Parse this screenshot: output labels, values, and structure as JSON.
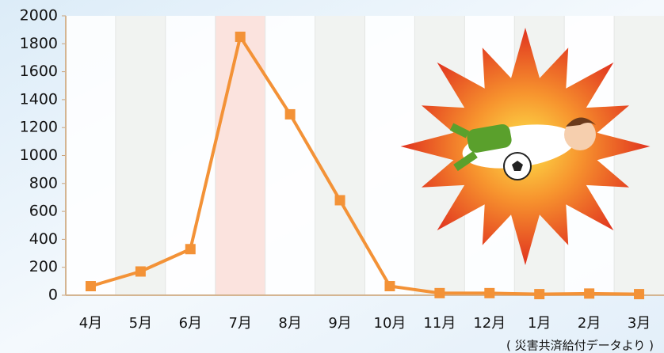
{
  "chart_data": {
    "type": "line",
    "categories": [
      "4月",
      "5月",
      "6月",
      "7月",
      "8月",
      "9月",
      "10月",
      "11月",
      "12月",
      "1月",
      "2月",
      "3月"
    ],
    "series": [
      {
        "color": "#f39237",
        "values": [
          65,
          170,
          330,
          1850,
          1295,
          680,
          65,
          15,
          15,
          8,
          12,
          8
        ]
      }
    ],
    "ylim": [
      0,
      2000
    ],
    "yticks": [
      0,
      200,
      400,
      600,
      800,
      1000,
      1200,
      1400,
      1600,
      1800,
      2000
    ],
    "highlight": 3,
    "highlight_color": "#fbe3de",
    "source": "( 災害共済給付データより )"
  }
}
